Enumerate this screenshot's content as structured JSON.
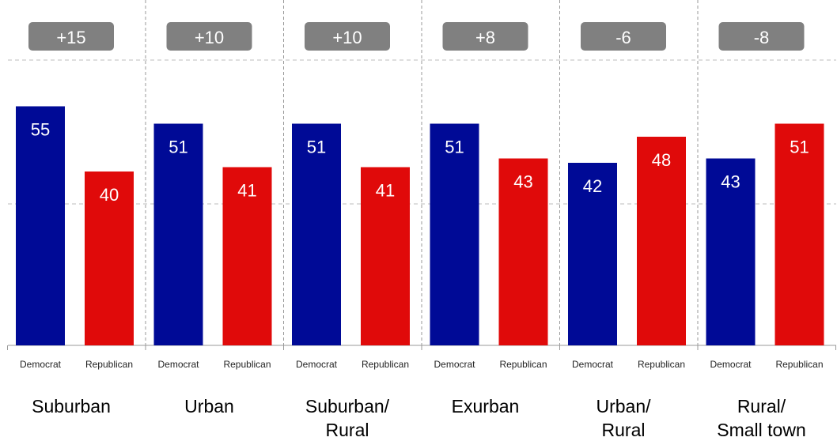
{
  "chart_data": {
    "type": "bar",
    "ylim": [
      0,
      64
    ],
    "grid": "horizontal-dashed",
    "bar_labels": [
      "Democrat",
      "Republican"
    ],
    "series": [
      {
        "name": "Democrat",
        "color": "#000a96",
        "values": [
          55,
          51,
          51,
          51,
          42,
          43
        ]
      },
      {
        "name": "Republican",
        "color": "#e00a0a",
        "values": [
          40,
          41,
          41,
          43,
          48,
          51
        ]
      }
    ],
    "groups": [
      {
        "label_lines": [
          "Suburban"
        ],
        "margin": "+15"
      },
      {
        "label_lines": [
          "Urban"
        ],
        "margin": "+10"
      },
      {
        "label_lines": [
          "Suburban/",
          "Rural"
        ],
        "margin": "+10"
      },
      {
        "label_lines": [
          "Exurban"
        ],
        "margin": "+8"
      },
      {
        "label_lines": [
          "Urban/",
          "Rural"
        ],
        "margin": "-6"
      },
      {
        "label_lines": [
          "Rural/",
          "Small town"
        ],
        "margin": "-8"
      }
    ],
    "margin_badge_color": "#808080"
  }
}
